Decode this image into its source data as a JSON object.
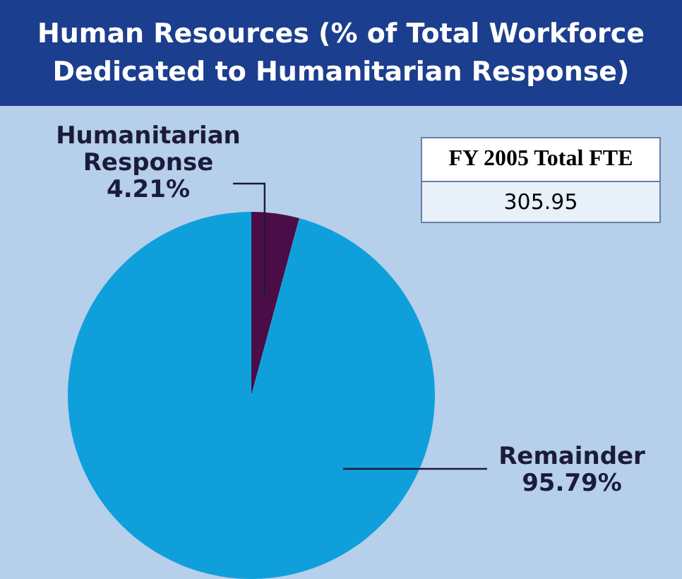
{
  "chart_data": {
    "type": "pie",
    "title": "Human Resources (% of Total Workforce Dedicated to Humanitarian Response)",
    "categories": [
      "Humanitarian Response",
      "Remainder"
    ],
    "values": [
      4.21,
      95.79
    ],
    "colors": [
      "#4a0d48",
      "#0fa0dc"
    ],
    "value_labels": [
      "4.21%",
      "95.79%"
    ],
    "annotations": [
      "FY 2005 Total FTE",
      "305.95"
    ],
    "legend": false
  }
}
